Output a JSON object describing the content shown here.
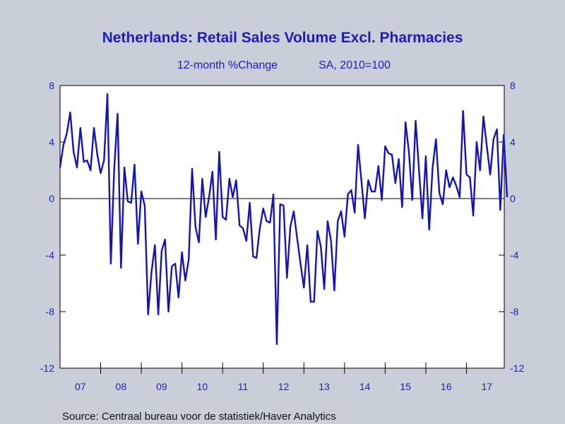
{
  "chart_data": {
    "type": "line",
    "title": "Netherlands: Retail Sales Volume Excl. Pharmacies",
    "subtitle_left": "12-month %Change",
    "subtitle_right": "SA, 2010=100",
    "source": "Source:  Centraal bureau voor de statistiek/Haver Analytics",
    "x_start": "2007-01",
    "x_end": "2017-10",
    "ylim": [
      -12,
      8
    ],
    "yticks": [
      "8",
      "4",
      "0",
      "-4",
      "-8",
      "-12"
    ],
    "ytick_values": [
      8,
      4,
      0,
      -4,
      -8,
      -12
    ],
    "xtick_labels": [
      "07",
      "08",
      "09",
      "10",
      "11",
      "12",
      "13",
      "14",
      "15",
      "16",
      "17"
    ],
    "zero_line": true,
    "grid": false,
    "series": [
      {
        "color": "#1414b4",
        "values": [
          2.2,
          3.8,
          4.6,
          6.1,
          3.3,
          2.2,
          5.0,
          2.6,
          2.7,
          2.0,
          5.0,
          3.1,
          1.8,
          2.7,
          7.4,
          -4.6,
          2.1,
          6.0,
          -4.9,
          2.2,
          -0.2,
          -0.3,
          2.4,
          -3.2,
          0.5,
          -0.5,
          -8.2,
          -5.2,
          -3.3,
          -8.2,
          -3.7,
          -2.9,
          -8.0,
          -4.8,
          -4.6,
          -7.0,
          -3.8,
          -5.8,
          -4.3,
          2.1,
          -2.0,
          -3.1,
          1.4,
          -1.3,
          0.1,
          1.9,
          -2.9,
          3.3,
          -1.3,
          -1.5,
          1.4,
          0.1,
          1.3,
          -1.9,
          -2.1,
          -3.0,
          -0.3,
          -4.1,
          -4.2,
          -2.1,
          -0.7,
          -1.6,
          -1.7,
          0.3,
          -10.3,
          -0.4,
          -0.5,
          -5.6,
          -2.0,
          -0.9,
          -2.8,
          -4.6,
          -6.3,
          -3.3,
          -7.3,
          -7.3,
          -2.3,
          -3.4,
          -6.4,
          -1.6,
          -3.0,
          -6.5,
          -1.6,
          -0.9,
          -2.7,
          0.3,
          0.6,
          -1.0,
          3.8,
          1.2,
          -1.4,
          1.3,
          0.5,
          0.5,
          2.3,
          -0.1,
          3.7,
          3.2,
          3.1,
          1.1,
          2.8,
          -0.6,
          5.4,
          3.3,
          -0.1,
          5.5,
          2.0,
          -1.4,
          3.0,
          -2.2,
          2.2,
          4.2,
          0.4,
          -0.4,
          2.0,
          0.8,
          1.5,
          0.9,
          0.1,
          6.2,
          1.7,
          1.5,
          -1.2,
          4.0,
          2.0,
          5.8,
          3.7,
          1.7,
          4.2,
          4.9,
          -0.8,
          4.5,
          0.1
        ]
      }
    ]
  }
}
